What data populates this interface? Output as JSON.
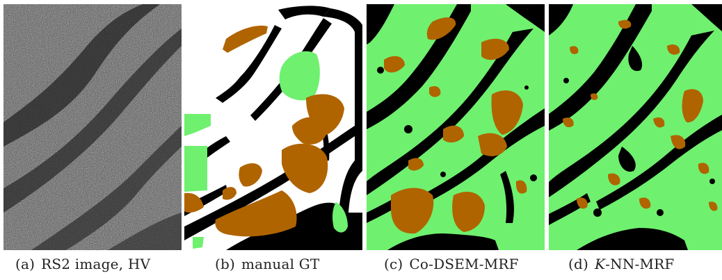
{
  "figure": {
    "panels": [
      {
        "label": "(a)",
        "title": "RS2 image, HV"
      },
      {
        "label": "(b)",
        "title": "manual GT"
      },
      {
        "label": "(c)",
        "title": "Co-DSEM-MRF"
      },
      {
        "label": "(d)",
        "title_italic": "K",
        "title": "-NN-MRF"
      }
    ]
  },
  "colors": {
    "green_class": "#6ff06f",
    "brown_class": "#b06400",
    "black_class": "#000000",
    "white_class": "#ffffff",
    "sar_dark": "#2a2a2a",
    "sar_light": "#7a7a7a"
  }
}
